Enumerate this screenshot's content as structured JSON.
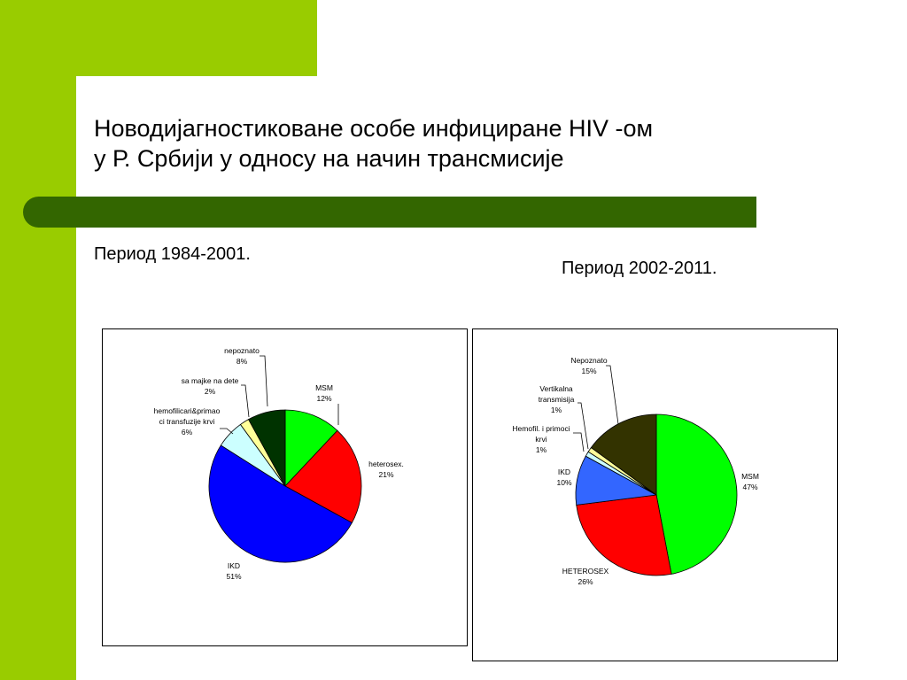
{
  "theme": {
    "accent_green": "#99cc00",
    "bar_green": "#336600"
  },
  "slide": {
    "title_line1": "Новодијагностиковане особе инфициране HIV -ом",
    "title_line2": "у Р. Србији у односу на начин трансмисије",
    "period_left": "Период 1984-2001.",
    "period_right": "Период 2002-2011."
  },
  "chart_data": [
    {
      "type": "pie",
      "title": "",
      "start_angle_deg": 0,
      "slices": [
        {
          "lines": [
            "MSM",
            "12%"
          ],
          "value": 12,
          "color": "#00ff00"
        },
        {
          "lines": [
            "heterosex.",
            "21%"
          ],
          "value": 21,
          "color": "#ff0000"
        },
        {
          "lines": [
            "IKD",
            "51%"
          ],
          "value": 51,
          "color": "#0000ff"
        },
        {
          "lines": [
            "hemofilicari&primao",
            "ci transfuzije krvi",
            "6%"
          ],
          "value": 6,
          "color": "#ccffff"
        },
        {
          "lines": [
            "sa majke na dete",
            "2%"
          ],
          "value": 2,
          "color": "#ffff99"
        },
        {
          "lines": [
            "nepoznato",
            "8%"
          ],
          "value": 8,
          "color": "#003300"
        }
      ]
    },
    {
      "type": "pie",
      "title": "",
      "start_angle_deg": 0,
      "slices": [
        {
          "lines": [
            "MSM",
            "47%"
          ],
          "value": 47,
          "color": "#00ff00"
        },
        {
          "lines": [
            "HETEROSEX",
            "26%"
          ],
          "value": 26,
          "color": "#ff0000"
        },
        {
          "lines": [
            "IKD",
            "10%"
          ],
          "value": 10,
          "color": "#3366ff"
        },
        {
          "lines": [
            "Hemofil. i primoci",
            "krvi",
            "1%"
          ],
          "value": 1,
          "color": "#ccffff"
        },
        {
          "lines": [
            "Vertikalna",
            "transmisija",
            "1%"
          ],
          "value": 1,
          "color": "#ffff99"
        },
        {
          "lines": [
            "Nepoznato",
            "15%"
          ],
          "value": 15,
          "color": "#333300"
        }
      ]
    }
  ]
}
